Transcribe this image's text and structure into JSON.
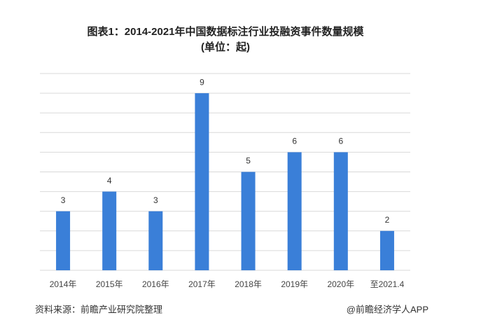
{
  "chart_data": {
    "type": "bar",
    "title": "图表1：2014-2021年中国数据标注行业投融资事件数量规模",
    "subtitle": "(单位：起)",
    "categories": [
      "2014年",
      "2015年",
      "2016年",
      "2017年",
      "2018年",
      "2019年",
      "2020年",
      "至2021.4"
    ],
    "values": [
      3,
      4,
      3,
      9,
      5,
      6,
      6,
      2
    ],
    "color": "#3a7fd8",
    "ylim": [
      0,
      10
    ],
    "yticks": [
      0,
      1,
      2,
      3,
      4,
      5,
      6,
      7,
      8,
      9,
      10
    ],
    "grid": true
  },
  "source": "资料来源：前瞻产业研究院整理",
  "credit": "@前瞻经济学人APP"
}
